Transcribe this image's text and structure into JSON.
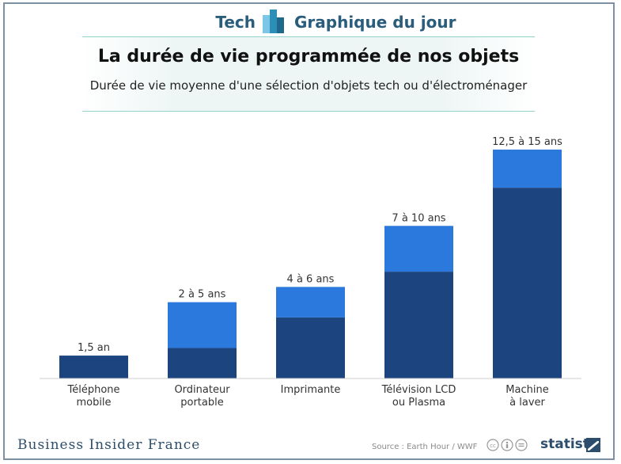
{
  "header": {
    "left_label": "Tech",
    "right_label": "Graphique du jour"
  },
  "title": "La durée de vie programmée de nos objets",
  "subtitle": "Durée de vie moyenne d'une sélection d'objets tech ou d'électroménager",
  "colors": {
    "dark": "#1c4580",
    "light": "#2b79dd",
    "accent": "#2a5d7c"
  },
  "chart_data": {
    "type": "bar",
    "stacked": true,
    "categories": [
      [
        "Téléphone",
        "mobile"
      ],
      [
        "Ordinateur",
        "portable"
      ],
      [
        "Imprimante"
      ],
      [
        "Télévision LCD",
        "ou Plasma"
      ],
      [
        "Machine",
        "à laver"
      ]
    ],
    "series": [
      {
        "values": [
          1.5,
          2,
          4,
          7,
          12.5
        ]
      },
      {
        "values": [
          0,
          3,
          2,
          3,
          2.5
        ]
      }
    ],
    "data_labels": [
      "1,5 an",
      "2 à 5 ans",
      "4 à 6 ans",
      "7 à 10 ans",
      "12,5 à 15 ans"
    ],
    "ylim": [
      0,
      16.5
    ],
    "grid": false,
    "legend": "none"
  },
  "footer": {
    "brand": "Business Insider France",
    "source": "Source : Earth Hour / WWF",
    "statista": "statista"
  }
}
